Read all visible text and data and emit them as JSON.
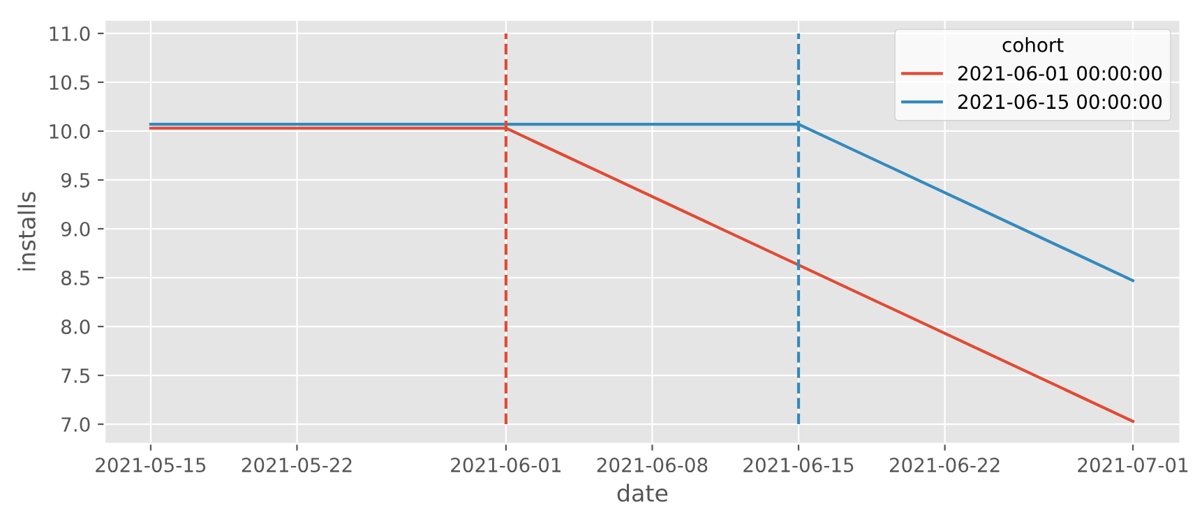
{
  "chart_data": {
    "type": "line",
    "xlabel": "date",
    "ylabel": "installs",
    "legend_title": "cohort",
    "series": [
      {
        "name": "2021-06-01 00:00:00",
        "color": "#e24a33",
        "x": [
          "2021-05-15",
          "2021-06-01",
          "2021-07-01"
        ],
        "values": [
          10.03,
          10.03,
          7.03
        ]
      },
      {
        "name": "2021-06-15 00:00:00",
        "color": "#348abd",
        "x": [
          "2021-05-15",
          "2021-06-15",
          "2021-07-01"
        ],
        "values": [
          10.07,
          10.07,
          8.47
        ]
      }
    ],
    "ref_lines": [
      {
        "axis": "x",
        "value": "2021-06-01",
        "color": "#e24a33",
        "line_style": "dashed"
      },
      {
        "axis": "x",
        "value": "2021-06-15",
        "color": "#348abd",
        "line_style": "dashed"
      }
    ],
    "xlim": [
      "2021-05-12T19:00",
      "2021-07-03T06:30"
    ],
    "xticks": [
      "2021-05-15",
      "2021-05-22",
      "2021-06-01",
      "2021-06-08",
      "2021-06-15",
      "2021-06-22",
      "2021-07-01"
    ],
    "ylim": [
      6.8,
      11.14
    ],
    "yticks": [
      {
        "value": 7.0,
        "label": "7.0"
      },
      {
        "value": 7.5,
        "label": "7.5"
      },
      {
        "value": 8.0,
        "label": "8.0"
      },
      {
        "value": 8.5,
        "label": "8.5"
      },
      {
        "value": 9.0,
        "label": "9.0"
      },
      {
        "value": 9.5,
        "label": "9.5"
      },
      {
        "value": 10.0,
        "label": "10.0"
      },
      {
        "value": 10.5,
        "label": "10.5"
      },
      {
        "value": 11.0,
        "label": "11.0"
      }
    ],
    "grid": true,
    "legend": "top right",
    "line_style": "solid"
  }
}
